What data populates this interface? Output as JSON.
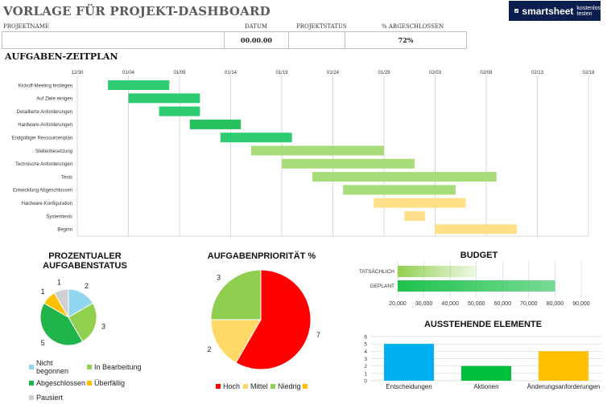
{
  "header": {
    "title": "VORLAGE FÜR PROJEKT-DASHBOARD",
    "brand_name": "smartsheet",
    "brand_cta": "kostenlos testen",
    "columns": {
      "project_name": "PROJEKTNAME",
      "date": "DATUM",
      "status": "PROJEKTSTATUS",
      "percent": "% ABGESCHLOSSEN"
    },
    "values": {
      "project_name": "",
      "date": "00.00.00",
      "status": "",
      "percent": "72%"
    }
  },
  "gantt": {
    "title": "AUFGABEN-ZEITPLAN",
    "ticks": [
      "12/30",
      "01/04",
      "01/09",
      "01/14",
      "01/19",
      "01/24",
      "01/29",
      "02/03",
      "02/08",
      "02/13",
      "02/18"
    ],
    "tasks": [
      {
        "name": "Kickoff-Meeting festlegen",
        "start": "01/02",
        "end": "01/08",
        "color": "#2ecc71"
      },
      {
        "name": "Auf Ziele einigen",
        "start": "01/04",
        "end": "01/11",
        "color": "#2ecc71"
      },
      {
        "name": "Detaillierte Anforderungen",
        "start": "01/07",
        "end": "01/11",
        "color": "#2ecc71"
      },
      {
        "name": "Hardware-Anforderungen",
        "start": "01/10",
        "end": "01/15",
        "color": "#27c05e"
      },
      {
        "name": "Endgültiger Ressourcenplan",
        "start": "01/13",
        "end": "01/20",
        "color": "#2ecc71"
      },
      {
        "name": "Stellenbesetzung",
        "start": "01/16",
        "end": "01/29",
        "color": "#a7dc78"
      },
      {
        "name": "Technische Anforderungen",
        "start": "01/19",
        "end": "02/01",
        "color": "#a7dc78"
      },
      {
        "name": "Tests",
        "start": "01/22",
        "end": "02/09",
        "color": "#a7dc78"
      },
      {
        "name": "Entwicklung Abgeschlossen",
        "start": "01/25",
        "end": "02/05",
        "color": "#a7dc78"
      },
      {
        "name": "Hardware-Konfiguration",
        "start": "01/28",
        "end": "02/06",
        "color": "#ffdf87"
      },
      {
        "name": "Systemtests",
        "start": "01/31",
        "end": "02/02",
        "color": "#ffdf87"
      },
      {
        "name": "Beginn",
        "start": "02/03",
        "end": "02/11",
        "color": "#ffdf87"
      }
    ]
  },
  "status_pie": {
    "title_line1": "PROZENTUALER",
    "title_line2": "AUFGABENSTATUS",
    "slices": [
      {
        "name": "Nicht begonnen",
        "value": 2,
        "color": "#8fd6ee"
      },
      {
        "name": "In Bearbeitung",
        "value": 3,
        "color": "#92d050"
      },
      {
        "name": "Abgeschlossen",
        "value": 5,
        "color": "#1fb54a"
      },
      {
        "name": "Überfällig",
        "value": 1,
        "color": "#ffc000"
      },
      {
        "name": "Pausiert",
        "value": 1,
        "color": "#d0d0d0"
      }
    ]
  },
  "priority_pie": {
    "title": "AUFGABENPRIORITÄT %",
    "slices": [
      {
        "name": "Hoch",
        "value": 7,
        "color": "#ff0000"
      },
      {
        "name": "Mittel",
        "value": 2,
        "color": "#ffd966"
      },
      {
        "name": "Niedrig",
        "value": 3,
        "color": "#8fce4f"
      }
    ],
    "extra_legend_color": "#ffc000"
  },
  "budget": {
    "title": "BUDGET",
    "bars": [
      {
        "name": "TATSÄCHLICH",
        "value": 50000,
        "color": "#92d050"
      },
      {
        "name": "GEPLANT",
        "value": 80000,
        "color": "#1fc14d"
      }
    ],
    "ticks": [
      "20,000",
      "30,000",
      "40,000",
      "50,000",
      "60,000",
      "70,000",
      "80,000",
      "90,000"
    ],
    "xlim": [
      20000,
      90000
    ]
  },
  "pending": {
    "title": "AUSSTEHENDE ELEMENTE",
    "categories": [
      "Entscheidungen",
      "Aktionen",
      "Änderungsanforderungen"
    ],
    "values": [
      5,
      2,
      4
    ],
    "colors": [
      "#00b0f0",
      "#00c03c",
      "#ffc000"
    ],
    "yticks": [
      "0",
      "1",
      "2",
      "3",
      "4",
      "5",
      "6"
    ],
    "ylim": [
      0,
      6
    ]
  }
}
